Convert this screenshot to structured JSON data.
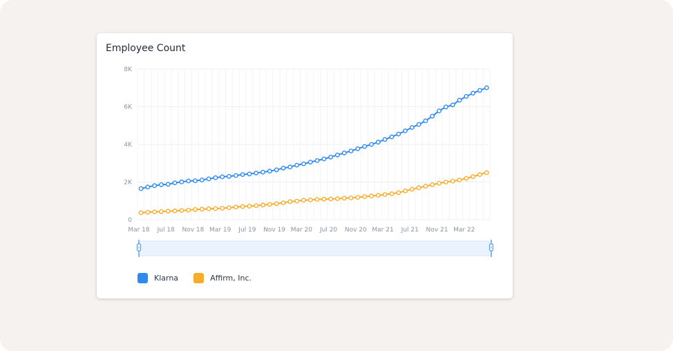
{
  "card": {
    "title": "Employee Count"
  },
  "legend": [
    {
      "label": "Klarna",
      "color": "#2f8af0"
    },
    {
      "label": "Affirm, Inc.",
      "color": "#f8ac2b"
    }
  ],
  "chart_data": {
    "type": "line",
    "title": "Employee Count",
    "x_tick_labels": [
      "Mar 18",
      "Jul 18",
      "Nov 18",
      "Mar 19",
      "Jul 19",
      "Nov 19",
      "Mar 20",
      "Jul 20",
      "Nov 20",
      "Mar 21",
      "Jul 21",
      "Nov 21",
      "Mar 22"
    ],
    "y_tick_labels": [
      "0",
      "2K",
      "4K",
      "6K",
      "8K"
    ],
    "ylim": [
      0,
      8000
    ],
    "x_start": "2018-03",
    "x_end": "2022-06",
    "grid": true,
    "legend_position": "bottom-left",
    "has_range_slider": true,
    "series": [
      {
        "name": "Klarna",
        "color": "#2f8af0",
        "values": [
          1650,
          1740,
          1810,
          1860,
          1880,
          1960,
          2010,
          2060,
          2070,
          2110,
          2170,
          2230,
          2280,
          2300,
          2350,
          2400,
          2430,
          2480,
          2530,
          2580,
          2650,
          2740,
          2800,
          2900,
          2970,
          3060,
          3140,
          3230,
          3330,
          3440,
          3550,
          3650,
          3770,
          3890,
          4000,
          4120,
          4260,
          4400,
          4550,
          4720,
          4900,
          5060,
          5250,
          5500,
          5780,
          5990,
          6100,
          6350,
          6550,
          6720,
          6870,
          7010
        ]
      },
      {
        "name": "Affirm, Inc.",
        "color": "#f8ac2b",
        "values": [
          370,
          400,
          420,
          430,
          450,
          470,
          490,
          510,
          540,
          560,
          580,
          590,
          610,
          640,
          670,
          700,
          720,
          750,
          780,
          810,
          850,
          900,
          960,
          990,
          1030,
          1050,
          1080,
          1090,
          1100,
          1120,
          1140,
          1160,
          1190,
          1230,
          1260,
          1300,
          1340,
          1380,
          1440,
          1530,
          1620,
          1700,
          1780,
          1860,
          1940,
          2000,
          2050,
          2110,
          2200,
          2290,
          2400,
          2500
        ]
      }
    ]
  }
}
